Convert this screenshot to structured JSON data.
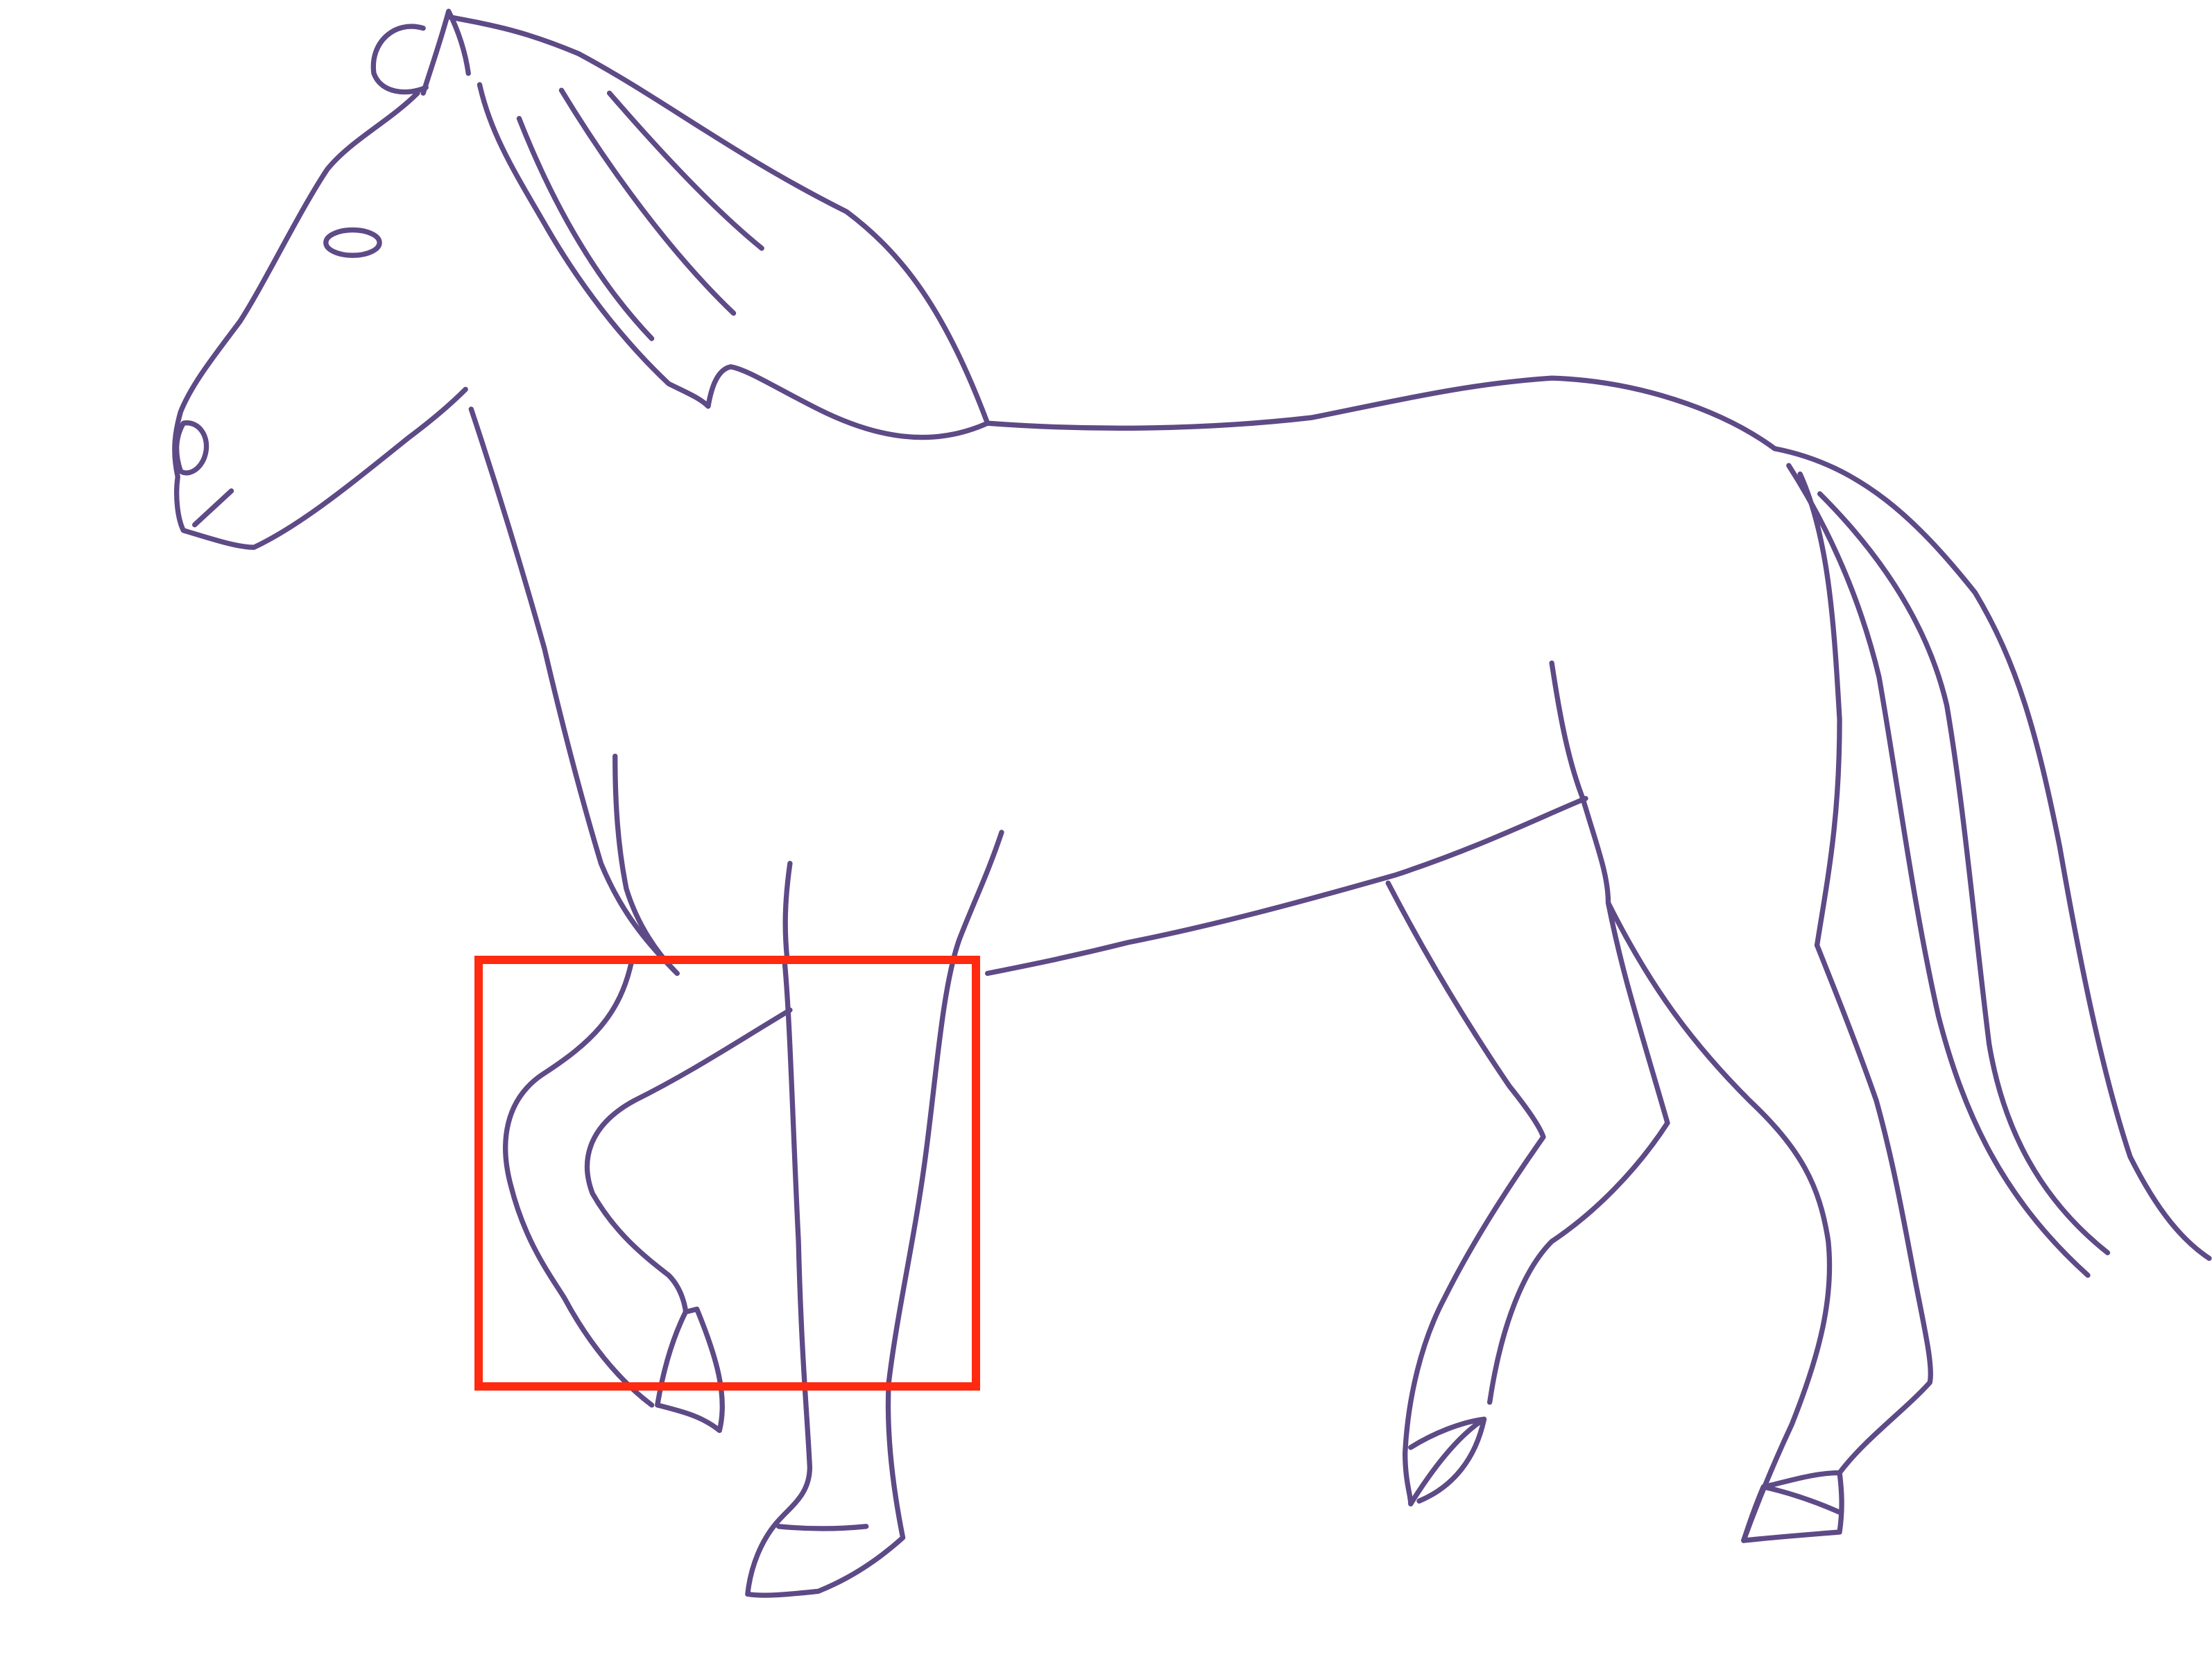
{
  "drawing": {
    "subject": "horse-sketch",
    "ink_color": "#5e4a86",
    "highlight_color": "#ff2a10",
    "background_color": "#ffffff"
  }
}
